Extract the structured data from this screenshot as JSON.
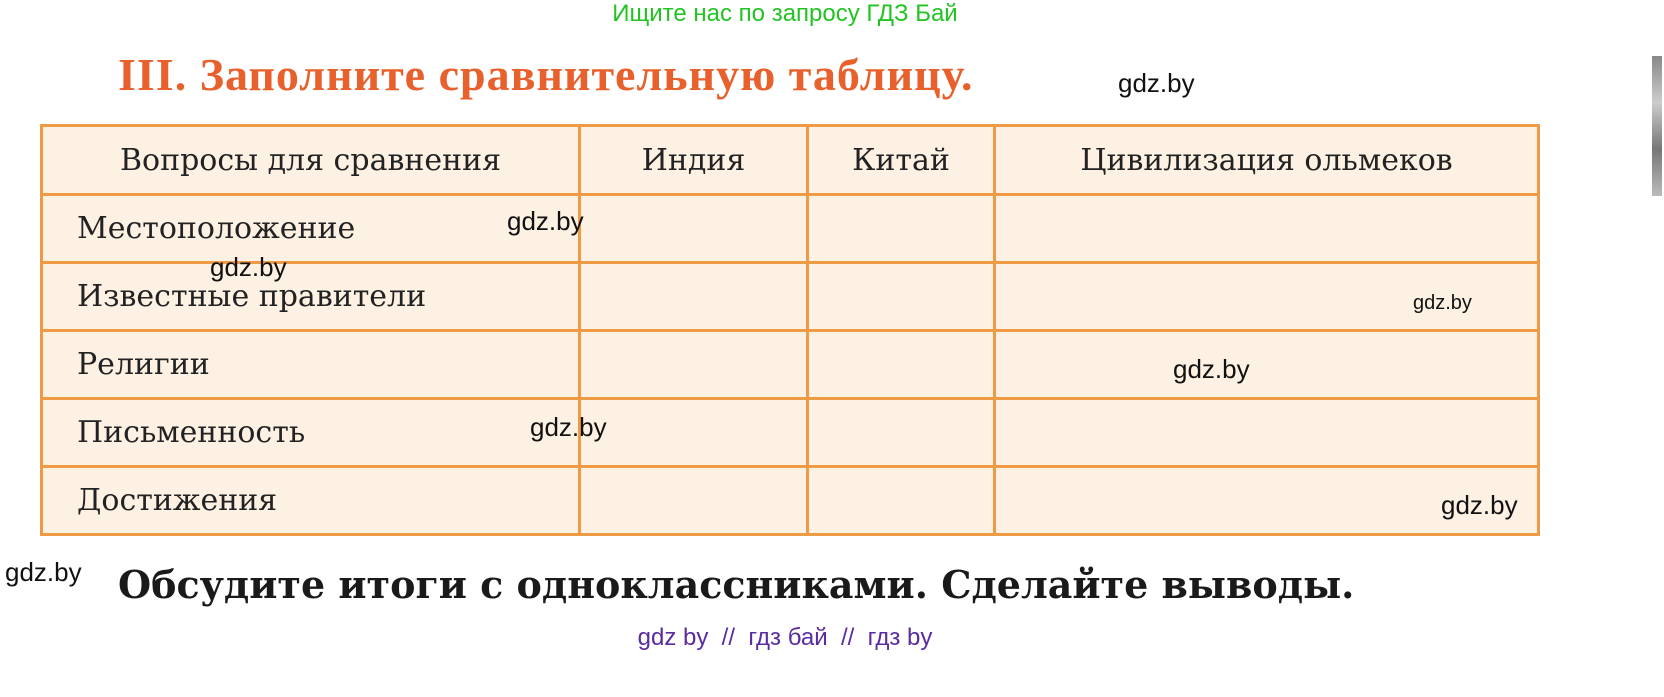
{
  "banner": "Ищите нас по запросу ГДЗ Бай",
  "title": "III. Заполните сравнительную таблицу.",
  "table": {
    "headers": [
      "Вопросы для сравнения",
      "Индия",
      "Китай",
      "Цивилизация ольмеков"
    ],
    "rows": [
      "Местоположение",
      "Известные правители",
      "Религии",
      "Письменность",
      "Достижения"
    ]
  },
  "footer_text": "Обсудите итоги с одноклассниками. Сделайте выводы.",
  "watermark": "gdz.by",
  "bottom_links": "gdz by  //  гдз бай  //  гдз by",
  "colors": {
    "title": "#e8602c",
    "border": "#ef9a45",
    "cell_bg": "#fdf1e4",
    "banner": "#22c322",
    "links": "#5a2ca0"
  }
}
